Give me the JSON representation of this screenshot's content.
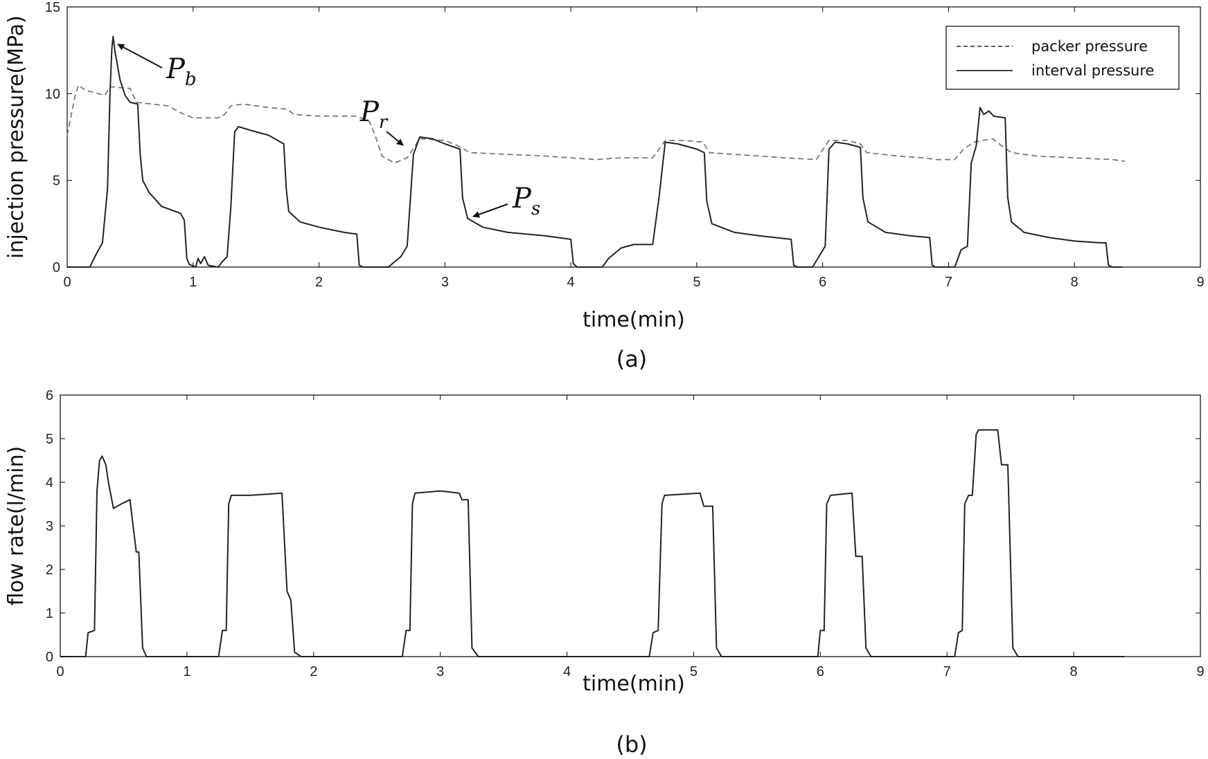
{
  "chart_data": [
    {
      "type": "line",
      "panel_label": "(a)",
      "xlabel": "time(min)",
      "ylabel": "injection pressure(MPa)",
      "xlim": [
        0,
        9
      ],
      "ylim": [
        0,
        15
      ],
      "xticks": [
        "0",
        "1",
        "2",
        "3",
        "4",
        "5",
        "6",
        "7",
        "8",
        "9"
      ],
      "yticks": [
        "0",
        "5",
        "10",
        "15"
      ],
      "grid": false,
      "legend_position": "top-right",
      "series": [
        {
          "name": "packer pressure",
          "style": "dashed",
          "color": "#777777",
          "points": [
            [
              0,
              7.6
            ],
            [
              0.02,
              8.3
            ],
            [
              0.06,
              9.8
            ],
            [
              0.09,
              10.5
            ],
            [
              0.14,
              10.2
            ],
            [
              0.3,
              9.9
            ],
            [
              0.34,
              10.4
            ],
            [
              0.5,
              10.3
            ],
            [
              0.55,
              9.5
            ],
            [
              0.8,
              9.3
            ],
            [
              0.9,
              8.9
            ],
            [
              1.0,
              8.6
            ],
            [
              1.2,
              8.6
            ],
            [
              1.25,
              8.8
            ],
            [
              1.3,
              9.3
            ],
            [
              1.4,
              9.4
            ],
            [
              1.6,
              9.2
            ],
            [
              1.75,
              9.1
            ],
            [
              1.8,
              8.8
            ],
            [
              2.0,
              8.7
            ],
            [
              2.3,
              8.7
            ],
            [
              2.4,
              8.4
            ],
            [
              2.45,
              7.5
            ],
            [
              2.5,
              6.4
            ],
            [
              2.6,
              6.0
            ],
            [
              2.7,
              6.3
            ],
            [
              2.8,
              7.4
            ],
            [
              3.0,
              7.3
            ],
            [
              3.1,
              7.0
            ],
            [
              3.2,
              6.6
            ],
            [
              3.5,
              6.5
            ],
            [
              3.8,
              6.4
            ],
            [
              4.0,
              6.3
            ],
            [
              4.2,
              6.2
            ],
            [
              4.4,
              6.3
            ],
            [
              4.65,
              6.3
            ],
            [
              4.75,
              7.3
            ],
            [
              4.9,
              7.3
            ],
            [
              5.05,
              7.2
            ],
            [
              5.1,
              6.6
            ],
            [
              5.3,
              6.5
            ],
            [
              5.7,
              6.3
            ],
            [
              5.95,
              6.2
            ],
            [
              6.05,
              7.3
            ],
            [
              6.2,
              7.3
            ],
            [
              6.3,
              7.1
            ],
            [
              6.35,
              6.6
            ],
            [
              6.6,
              6.4
            ],
            [
              6.8,
              6.3
            ],
            [
              6.9,
              6.2
            ],
            [
              7.05,
              6.2
            ],
            [
              7.12,
              6.8
            ],
            [
              7.2,
              7.2
            ],
            [
              7.35,
              7.4
            ],
            [
              7.42,
              7.0
            ],
            [
              7.5,
              6.6
            ],
            [
              7.7,
              6.4
            ],
            [
              8.0,
              6.3
            ],
            [
              8.3,
              6.2
            ],
            [
              8.4,
              6.1
            ]
          ]
        },
        {
          "name": "interval pressure",
          "style": "solid",
          "color": "#222222",
          "points": [
            [
              0,
              0
            ],
            [
              0.18,
              0
            ],
            [
              0.22,
              0.6
            ],
            [
              0.28,
              1.4
            ],
            [
              0.32,
              4.5
            ],
            [
              0.34,
              10.0
            ],
            [
              0.355,
              12.6
            ],
            [
              0.365,
              13.3
            ],
            [
              0.38,
              12.4
            ],
            [
              0.42,
              10.8
            ],
            [
              0.46,
              9.9
            ],
            [
              0.5,
              9.5
            ],
            [
              0.56,
              9.4
            ],
            [
              0.58,
              6.5
            ],
            [
              0.6,
              5.0
            ],
            [
              0.65,
              4.3
            ],
            [
              0.75,
              3.5
            ],
            [
              0.9,
              3.1
            ],
            [
              0.93,
              2.7
            ],
            [
              0.95,
              0.5
            ],
            [
              0.97,
              0.15
            ],
            [
              1.02,
              0
            ],
            [
              1.04,
              0.5
            ],
            [
              1.06,
              0.2
            ],
            [
              1.09,
              0.6
            ],
            [
              1.12,
              0.1
            ],
            [
              1.16,
              0.05
            ],
            [
              1.2,
              0
            ],
            [
              1.23,
              0.3
            ],
            [
              1.27,
              0.6
            ],
            [
              1.3,
              3.5
            ],
            [
              1.33,
              7.8
            ],
            [
              1.36,
              8.1
            ],
            [
              1.45,
              7.9
            ],
            [
              1.6,
              7.6
            ],
            [
              1.72,
              7.1
            ],
            [
              1.74,
              4.5
            ],
            [
              1.76,
              3.2
            ],
            [
              1.85,
              2.6
            ],
            [
              2.0,
              2.3
            ],
            [
              2.2,
              2.0
            ],
            [
              2.3,
              1.9
            ],
            [
              2.32,
              0.1
            ],
            [
              2.35,
              0
            ],
            [
              2.55,
              0
            ],
            [
              2.6,
              0.3
            ],
            [
              2.65,
              0.6
            ],
            [
              2.7,
              1.2
            ],
            [
              2.75,
              6.5
            ],
            [
              2.8,
              7.5
            ],
            [
              2.9,
              7.4
            ],
            [
              3.0,
              7.1
            ],
            [
              3.12,
              6.8
            ],
            [
              3.14,
              4.0
            ],
            [
              3.18,
              2.8
            ],
            [
              3.3,
              2.3
            ],
            [
              3.5,
              2.0
            ],
            [
              3.8,
              1.8
            ],
            [
              4.0,
              1.6
            ],
            [
              4.02,
              0.2
            ],
            [
              4.05,
              0
            ],
            [
              4.25,
              0
            ],
            [
              4.3,
              0.5
            ],
            [
              4.4,
              1.1
            ],
            [
              4.5,
              1.3
            ],
            [
              4.65,
              1.3
            ],
            [
              4.7,
              4.0
            ],
            [
              4.75,
              7.2
            ],
            [
              4.85,
              7.1
            ],
            [
              5.0,
              6.8
            ],
            [
              5.06,
              6.6
            ],
            [
              5.08,
              3.8
            ],
            [
              5.12,
              2.5
            ],
            [
              5.3,
              2.0
            ],
            [
              5.5,
              1.8
            ],
            [
              5.75,
              1.6
            ],
            [
              5.77,
              0.1
            ],
            [
              5.8,
              0
            ],
            [
              5.92,
              0
            ],
            [
              5.97,
              0.6
            ],
            [
              6.02,
              1.2
            ],
            [
              6.05,
              6.8
            ],
            [
              6.1,
              7.2
            ],
            [
              6.2,
              7.1
            ],
            [
              6.3,
              6.9
            ],
            [
              6.32,
              4.0
            ],
            [
              6.36,
              2.6
            ],
            [
              6.5,
              2.0
            ],
            [
              6.7,
              1.8
            ],
            [
              6.85,
              1.7
            ],
            [
              6.87,
              0.1
            ],
            [
              6.9,
              0
            ],
            [
              7.05,
              0
            ],
            [
              7.1,
              1.0
            ],
            [
              7.15,
              1.2
            ],
            [
              7.18,
              6.0
            ],
            [
              7.22,
              7.0
            ],
            [
              7.25,
              9.2
            ],
            [
              7.28,
              8.8
            ],
            [
              7.32,
              9.0
            ],
            [
              7.36,
              8.7
            ],
            [
              7.45,
              8.6
            ],
            [
              7.47,
              4.0
            ],
            [
              7.5,
              2.6
            ],
            [
              7.6,
              2.0
            ],
            [
              7.8,
              1.7
            ],
            [
              8.0,
              1.5
            ],
            [
              8.2,
              1.4
            ],
            [
              8.25,
              1.4
            ],
            [
              8.27,
              0.1
            ],
            [
              8.3,
              0
            ],
            [
              8.38,
              0
            ]
          ]
        }
      ],
      "annotations": [
        {
          "main": "P",
          "sub": "b"
        },
        {
          "main": "P",
          "sub": "r"
        },
        {
          "main": "P",
          "sub": "s"
        }
      ]
    },
    {
      "type": "line",
      "panel_label": "(b)",
      "xlabel": "time(min)",
      "ylabel": "flow rate(l/min)",
      "xlim": [
        0,
        9
      ],
      "ylim": [
        0,
        6
      ],
      "xticks": [
        "0",
        "1",
        "2",
        "3",
        "4",
        "5",
        "6",
        "7",
        "8",
        "9"
      ],
      "yticks": [
        "0",
        "1",
        "2",
        "3",
        "4",
        "5",
        "6"
      ],
      "grid": false,
      "series": [
        {
          "name": "",
          "style": "solid",
          "color": "#222222",
          "points": [
            [
              0,
              0
            ],
            [
              0.2,
              0
            ],
            [
              0.22,
              0.55
            ],
            [
              0.27,
              0.6
            ],
            [
              0.29,
              3.8
            ],
            [
              0.31,
              4.5
            ],
            [
              0.33,
              4.6
            ],
            [
              0.36,
              4.4
            ],
            [
              0.38,
              4.0
            ],
            [
              0.42,
              3.4
            ],
            [
              0.48,
              3.5
            ],
            [
              0.55,
              3.6
            ],
            [
              0.6,
              2.4
            ],
            [
              0.62,
              2.4
            ],
            [
              0.65,
              0.2
            ],
            [
              0.68,
              0
            ],
            [
              1.25,
              0
            ],
            [
              1.28,
              0.6
            ],
            [
              1.31,
              0.6
            ],
            [
              1.33,
              3.5
            ],
            [
              1.35,
              3.7
            ],
            [
              1.5,
              3.7
            ],
            [
              1.75,
              3.75
            ],
            [
              1.79,
              1.5
            ],
            [
              1.82,
              1.3
            ],
            [
              1.85,
              0.1
            ],
            [
              1.9,
              0
            ],
            [
              2.7,
              0
            ],
            [
              2.73,
              0.6
            ],
            [
              2.76,
              0.6
            ],
            [
              2.78,
              3.5
            ],
            [
              2.8,
              3.75
            ],
            [
              3.0,
              3.8
            ],
            [
              3.15,
              3.75
            ],
            [
              3.17,
              3.6
            ],
            [
              3.22,
              3.6
            ],
            [
              3.25,
              0.2
            ],
            [
              3.3,
              0
            ],
            [
              4.65,
              0
            ],
            [
              4.68,
              0.55
            ],
            [
              4.72,
              0.6
            ],
            [
              4.75,
              3.5
            ],
            [
              4.77,
              3.7
            ],
            [
              5.05,
              3.75
            ],
            [
              5.08,
              3.45
            ],
            [
              5.15,
              3.45
            ],
            [
              5.18,
              0.2
            ],
            [
              5.22,
              0
            ],
            [
              5.98,
              0
            ],
            [
              6.0,
              0.6
            ],
            [
              6.03,
              0.6
            ],
            [
              6.05,
              3.5
            ],
            [
              6.08,
              3.7
            ],
            [
              6.25,
              3.75
            ],
            [
              6.28,
              2.3
            ],
            [
              6.33,
              2.3
            ],
            [
              6.36,
              0.2
            ],
            [
              6.4,
              0
            ],
            [
              7.06,
              0
            ],
            [
              7.09,
              0.55
            ],
            [
              7.12,
              0.6
            ],
            [
              7.14,
              3.5
            ],
            [
              7.17,
              3.7
            ],
            [
              7.2,
              3.7
            ],
            [
              7.23,
              5.1
            ],
            [
              7.25,
              5.2
            ],
            [
              7.4,
              5.2
            ],
            [
              7.43,
              4.4
            ],
            [
              7.48,
              4.4
            ],
            [
              7.52,
              0.2
            ],
            [
              7.56,
              0
            ],
            [
              8.4,
              0
            ]
          ]
        }
      ]
    }
  ]
}
